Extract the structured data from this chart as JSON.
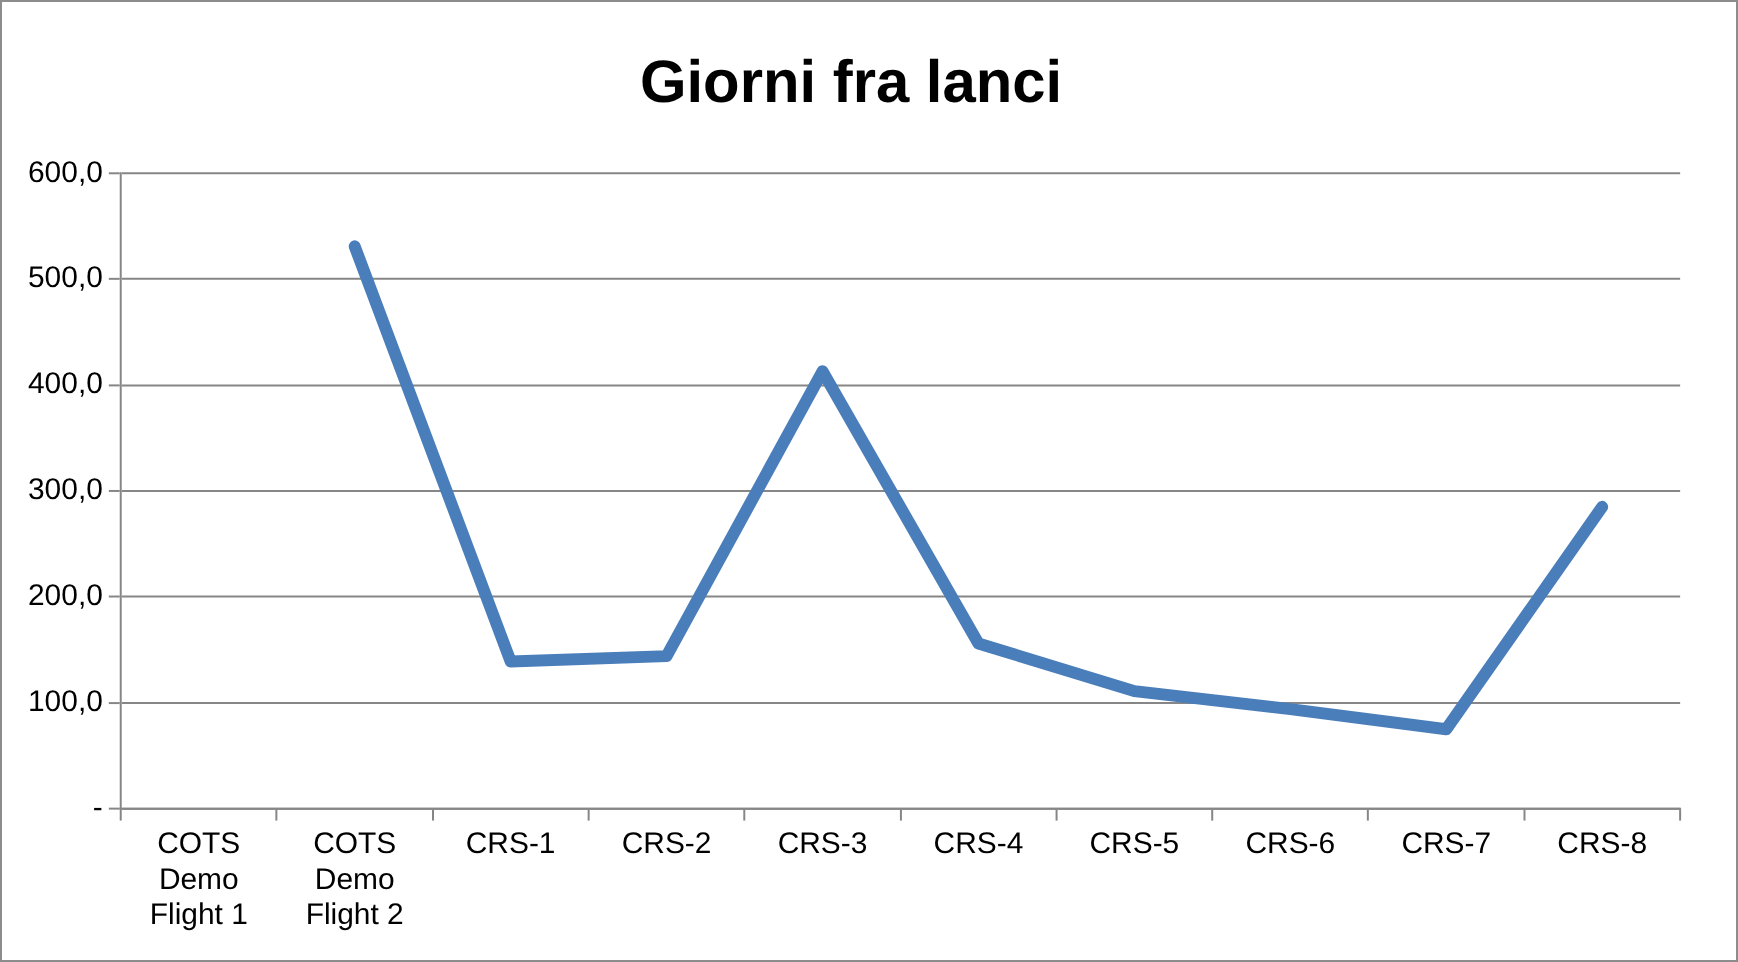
{
  "chart_data": {
    "type": "line",
    "title": "Giorni fra lanci",
    "categories": [
      "COTS Demo Flight 1",
      "COTS Demo Flight 2",
      "CRS-1",
      "CRS-2",
      "CRS-3",
      "CRS-4",
      "CRS-5",
      "CRS-6",
      "CRS-7",
      "CRS-8"
    ],
    "series": [
      {
        "color": "#4a7ebb",
        "values": [
          null,
          531,
          139,
          144,
          413,
          156,
          111,
          94,
          75,
          285
        ]
      }
    ],
    "ylim": [
      0,
      600
    ],
    "yticks": [
      {
        "value": 0,
        "label": "-"
      },
      {
        "value": 100,
        "label": "100,0"
      },
      {
        "value": 200,
        "label": "200,0"
      },
      {
        "value": 300,
        "label": "300,0"
      },
      {
        "value": 400,
        "label": "400,0"
      },
      {
        "value": 500,
        "label": "500,0"
      },
      {
        "value": 600,
        "label": "600,0"
      }
    ],
    "grid": "y",
    "legend": false,
    "marker": "none",
    "line_style": "solid"
  }
}
